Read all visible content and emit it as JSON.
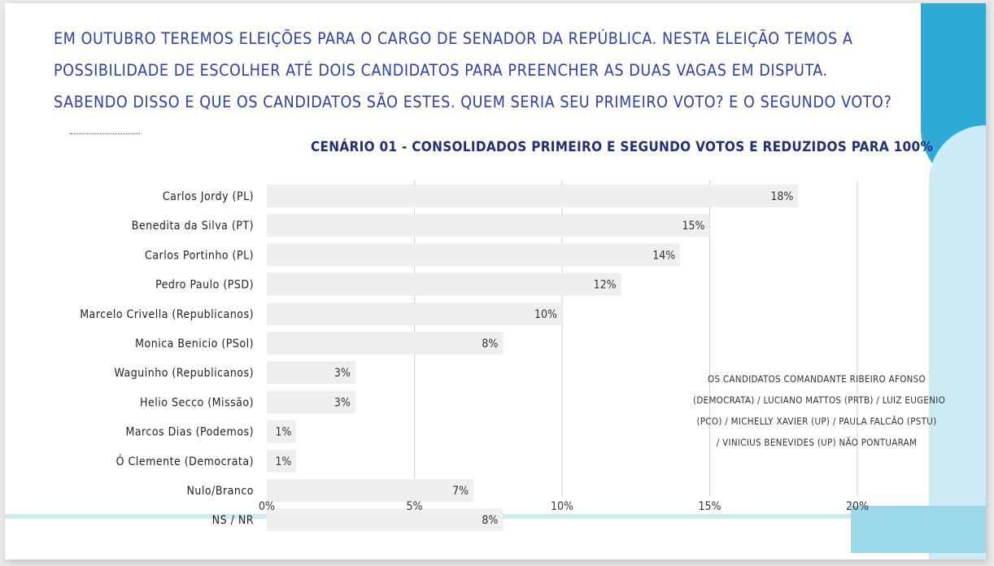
{
  "header": {
    "question_lines": [
      "EM OUTUBRO TEREMOS ELEIÇÕES PARA O CARGO DE SENADOR DA REPÚBLICA. NESTA ELEIÇÃO TEMOS A",
      "POSSIBILIDADE DE ESCOLHER ATÉ DOIS CANDIDATOS PARA PREENCHER AS DUAS VAGAS EM DISPUTA.",
      "SABENDO DISSO E QUE OS CANDIDATOS SÃO ESTES. QUEM SERIA SEU PRIMEIRO VOTO? E O SEGUNDO VOTO?"
    ]
  },
  "note": {
    "lines": [
      "OS CANDIDATOS  COMANDANTE RIBEIRO AFONSO",
      "(DEMOCRATA) / LUCIANO MATTOS (PRTB) / LUIZ EUGENIO",
      "(PCO) / MICHELLY XAVIER (UP) / PAULA FALCÃO (PSTU)",
      "/ VINICIUS BENEVIDES (UP) NÃO PONTUARAM"
    ]
  },
  "colors": {
    "title": "#1f2f7a",
    "question": "#2b3fb2",
    "bar": "#efefef",
    "grid": "#cfcfcf"
  },
  "chart_data": {
    "type": "bar",
    "orientation": "horizontal",
    "title": "CENÁRIO 01 - CONSOLIDADOS PRIMEIRO E SEGUNDO VOTOS E REDUZIDOS PARA 100%",
    "categories": [
      "Carlos Jordy (PL)",
      "Benedita da Silva (PT)",
      "Carlos Portinho (PL)",
      "Pedro Paulo (PSD)",
      "Marcelo Crivella (Republicanos)",
      "Monica Benicio (PSol)",
      "Waguinho (Republicanos)",
      "Helio Secco (Missão)",
      "Marcos Dias (Podemos)",
      "Ó Clemente (Democrata)",
      "Nulo/Branco",
      "NS / NR"
    ],
    "values": [
      18,
      15,
      14,
      12,
      10,
      8,
      3,
      3,
      1,
      1,
      7,
      8
    ],
    "value_labels": [
      "18%",
      "15%",
      "14%",
      "12%",
      "10%",
      "8%",
      "3%",
      "3%",
      "1%",
      "1%",
      "7%",
      "8%"
    ],
    "xlim": [
      0,
      20
    ],
    "ticks": [
      0,
      5,
      10,
      15,
      20
    ],
    "tick_labels": [
      "0%",
      "5%",
      "10%",
      "15%",
      "20%"
    ],
    "grid": true,
    "legend": "none"
  }
}
